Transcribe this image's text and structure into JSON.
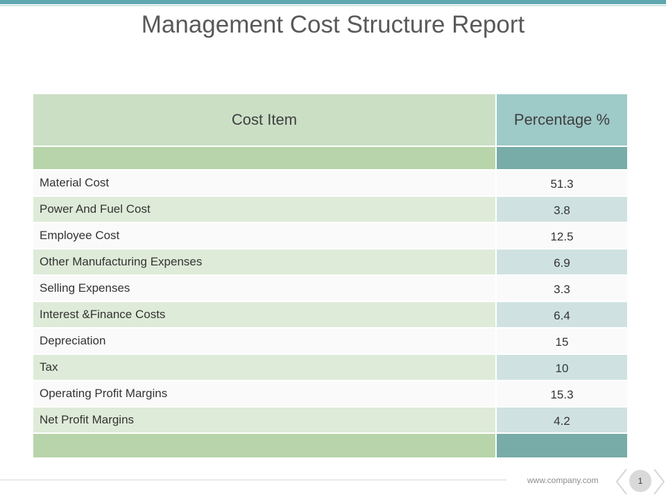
{
  "title": "Management Cost Structure Report",
  "table": {
    "headers": [
      "Cost Item",
      "Percentage %"
    ],
    "rows": [
      {
        "item": "Material Cost",
        "pct": "51.3"
      },
      {
        "item": "Power And Fuel Cost",
        "pct": "3.8"
      },
      {
        "item": "Employee Cost",
        "pct": "12.5"
      },
      {
        "item": "Other Manufacturing Expenses",
        "pct": "6.9"
      },
      {
        "item": "Selling Expenses",
        "pct": "3.3"
      },
      {
        "item": "Interest &Finance Costs",
        "pct": "6.4"
      },
      {
        "item": "Depreciation",
        "pct": "15"
      },
      {
        "item": "Tax",
        "pct": "10"
      },
      {
        "item": "Operating Profit Margins",
        "pct": "15.3"
      },
      {
        "item": "Net Profit Margins",
        "pct": "4.2"
      }
    ]
  },
  "footer": {
    "url": "www.company.com",
    "page_number": "1"
  },
  "colors": {
    "header_left": "#cbdfc5",
    "header_right": "#9ecac8",
    "band_left": "#b8d4aa",
    "band_right": "#78aca8",
    "accent": "#5fa8b0"
  }
}
